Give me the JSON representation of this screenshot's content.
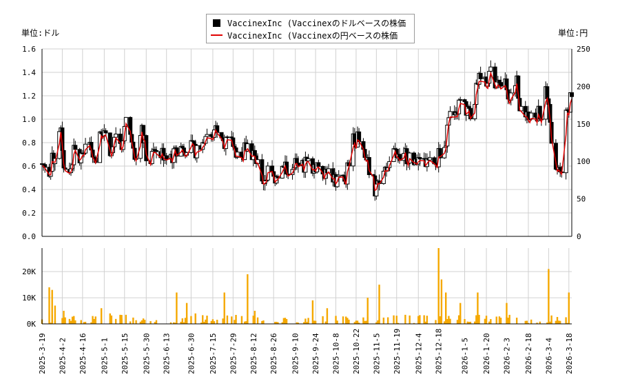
{
  "chart_data": {
    "type": "candlestick+line+volume",
    "legend": [
      {
        "label": "VaccinexInc (Vaccinexのドルベースの株価",
        "color": "#000000"
      },
      {
        "label": "VaccinexInc (Vaccinexの円ベースの株価",
        "color": "#e00000"
      }
    ],
    "left_unit": "単位:ドル",
    "right_unit": "単位:円",
    "y_left": {
      "min": 0,
      "max": 1.6,
      "ticks": [
        "0.0",
        "0.2",
        "0.4",
        "0.6",
        "0.8",
        "1.0",
        "1.2",
        "1.4",
        "1.6"
      ]
    },
    "y_right": {
      "min": 0,
      "max": 250,
      "ticks": [
        "0",
        "50",
        "100",
        "150",
        "200",
        "250"
      ]
    },
    "y_volume": {
      "min": 0,
      "max": 29000,
      "ticks": [
        "0K",
        "10K",
        "20K"
      ]
    },
    "x_range": [
      "2025-03-19",
      "2026-03-20"
    ],
    "x_ticks": [
      "2025-3-19",
      "2025-4-2",
      "2025-4-16",
      "2025-5-1",
      "2025-5-15",
      "2025-5-30",
      "2025-6-13",
      "2025-6-30",
      "2025-7-15",
      "2025-7-29",
      "2025-8-12",
      "2025-8-26",
      "2025-9-10",
      "2025-9-24",
      "2025-10-8",
      "2025-10-22",
      "2025-11-5",
      "2025-11-19",
      "2025-12-4",
      "2025-12-18",
      "2026-1-5",
      "2026-1-20",
      "2026-2-3",
      "2026-2-18",
      "2026-3-4",
      "2026-3-18"
    ],
    "usd_close_path": [
      [
        "2025-03-19",
        0.62
      ],
      [
        "2025-03-24",
        0.58
      ],
      [
        "2025-03-28",
        0.7
      ],
      [
        "2025-04-01",
        0.95
      ],
      [
        "2025-04-03",
        0.6
      ],
      [
        "2025-04-07",
        0.52
      ],
      [
        "2025-04-10",
        0.72
      ],
      [
        "2025-04-14",
        0.65
      ],
      [
        "2025-04-18",
        0.74
      ],
      [
        "2025-04-22",
        0.78
      ],
      [
        "2025-04-25",
        0.7
      ],
      [
        "2025-04-28",
        0.95
      ],
      [
        "2025-05-02",
        0.92
      ],
      [
        "2025-05-06",
        0.7
      ],
      [
        "2025-05-09",
        0.88
      ],
      [
        "2025-05-13",
        0.72
      ],
      [
        "2025-05-16",
        0.98
      ],
      [
        "2025-05-20",
        0.8
      ],
      [
        "2025-05-23",
        0.65
      ],
      [
        "2025-05-27",
        0.95
      ],
      [
        "2025-05-30",
        0.72
      ],
      [
        "2025-06-04",
        0.68
      ],
      [
        "2025-06-09",
        0.7
      ],
      [
        "2025-06-13",
        0.72
      ],
      [
        "2025-06-18",
        0.68
      ],
      [
        "2025-06-23",
        0.75
      ],
      [
        "2025-06-27",
        0.78
      ],
      [
        "2025-07-02",
        0.72
      ],
      [
        "2025-07-07",
        0.82
      ],
      [
        "2025-07-11",
        0.9
      ],
      [
        "2025-07-15",
        0.8
      ],
      [
        "2025-07-18",
        0.95
      ],
      [
        "2025-07-22",
        0.85
      ],
      [
        "2025-07-25",
        0.78
      ],
      [
        "2025-07-29",
        0.82
      ],
      [
        "2025-08-01",
        0.7
      ],
      [
        "2025-08-05",
        0.72
      ],
      [
        "2025-08-08",
        0.78
      ],
      [
        "2025-08-12",
        0.7
      ],
      [
        "2025-08-15",
        0.58
      ],
      [
        "2025-08-19",
        0.48
      ],
      [
        "2025-08-22",
        0.55
      ],
      [
        "2025-08-26",
        0.5
      ],
      [
        "2025-08-29",
        0.55
      ],
      [
        "2025-09-03",
        0.58
      ],
      [
        "2025-09-08",
        0.62
      ],
      [
        "2025-09-12",
        0.58
      ],
      [
        "2025-09-17",
        0.62
      ],
      [
        "2025-09-22",
        0.6
      ],
      [
        "2025-09-26",
        0.62
      ],
      [
        "2025-10-01",
        0.55
      ],
      [
        "2025-10-06",
        0.5
      ],
      [
        "2025-10-10",
        0.5
      ],
      [
        "2025-10-15",
        0.48
      ],
      [
        "2025-10-20",
        0.88
      ],
      [
        "2025-10-23",
        0.82
      ],
      [
        "2025-10-27",
        0.7
      ],
      [
        "2025-10-30",
        0.6
      ],
      [
        "2025-11-03",
        0.45
      ],
      [
        "2025-11-05",
        0.38
      ],
      [
        "2025-11-10",
        0.55
      ],
      [
        "2025-11-14",
        0.7
      ],
      [
        "2025-11-19",
        0.68
      ],
      [
        "2025-11-25",
        0.7
      ],
      [
        "2025-12-01",
        0.68
      ],
      [
        "2025-12-05",
        0.7
      ],
      [
        "2025-12-10",
        0.62
      ],
      [
        "2025-12-15",
        0.58
      ],
      [
        "2025-12-18",
        0.7
      ],
      [
        "2025-12-22",
        0.8
      ],
      [
        "2025-12-26",
        1.0
      ],
      [
        "2025-12-30",
        1.1
      ],
      [
        "2026-01-05",
        1.15
      ],
      [
        "2026-01-09",
        1.0
      ],
      [
        "2026-01-13",
        1.25
      ],
      [
        "2026-01-16",
        1.35
      ],
      [
        "2026-01-20",
        1.35
      ],
      [
        "2026-01-23",
        1.4
      ],
      [
        "2026-01-27",
        1.25
      ],
      [
        "2026-02-02",
        1.3
      ],
      [
        "2026-02-06",
        1.2
      ],
      [
        "2026-02-10",
        1.3
      ],
      [
        "2026-02-13",
        1.05
      ],
      [
        "2026-02-18",
        1.05
      ],
      [
        "2026-02-23",
        1.05
      ],
      [
        "2026-02-27",
        1.05
      ],
      [
        "2026-03-03",
        1.25
      ],
      [
        "2026-03-06",
        0.75
      ],
      [
        "2026-03-10",
        0.62
      ],
      [
        "2026-03-13",
        0.62
      ],
      [
        "2026-03-16",
        1.05
      ],
      [
        "2026-03-20",
        1.22
      ]
    ],
    "volume_k": [
      [
        "2025-03-24",
        14
      ],
      [
        "2025-03-26",
        13
      ],
      [
        "2025-03-28",
        7
      ],
      [
        "2025-04-03",
        5
      ],
      [
        "2025-04-10",
        3
      ],
      [
        "2025-04-23",
        3
      ],
      [
        "2025-04-29",
        6
      ],
      [
        "2025-05-05",
        4
      ],
      [
        "2025-05-13",
        2
      ],
      [
        "2025-06-20",
        12
      ],
      [
        "2025-06-27",
        8
      ],
      [
        "2025-07-03",
        4
      ],
      [
        "2025-07-23",
        12
      ],
      [
        "2025-08-08",
        19
      ],
      [
        "2025-08-13",
        5
      ],
      [
        "2025-09-22",
        9
      ],
      [
        "2025-10-02",
        6
      ],
      [
        "2025-10-30",
        10
      ],
      [
        "2025-11-07",
        15
      ],
      [
        "2025-12-18",
        29
      ],
      [
        "2025-12-20",
        17
      ],
      [
        "2025-12-23",
        12
      ],
      [
        "2026-01-02",
        8
      ],
      [
        "2026-01-14",
        12
      ],
      [
        "2026-02-03",
        8
      ],
      [
        "2026-03-04",
        21
      ],
      [
        "2026-03-18",
        12
      ]
    ]
  }
}
